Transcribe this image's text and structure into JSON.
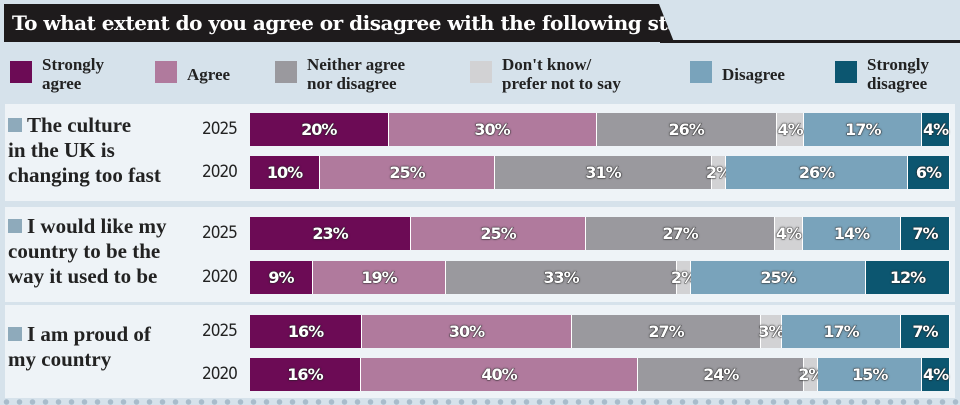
{
  "chart_data": {
    "type": "bar",
    "orientation": "horizontal",
    "stacked": true,
    "title": "To what extent do you agree or disagree with the following statements?",
    "legend_position": "top",
    "series": [
      {
        "name": "Strongly agree",
        "color": "#6c0b55"
      },
      {
        "name": "Agree",
        "color": "#b07a9d"
      },
      {
        "name": "Neither agree nor disagree",
        "color": "#9a999e"
      },
      {
        "name": "Don't know/ prefer not to say",
        "color": "#d2d2d4"
      },
      {
        "name": "Disagree",
        "color": "#79a3bb"
      },
      {
        "name": "Strongly disagree",
        "color": "#0c5670"
      }
    ],
    "groups": [
      {
        "statement": "The culture\nin the UK is\nchanging too fast",
        "rows": [
          {
            "year": "2025",
            "values": [
              20,
              30,
              26,
              4,
              17,
              4
            ]
          },
          {
            "year": "2020",
            "values": [
              10,
              25,
              31,
              2,
              26,
              6
            ]
          }
        ]
      },
      {
        "statement": "I would like my\ncountry to be the\nway it used to be",
        "rows": [
          {
            "year": "2025",
            "values": [
              23,
              25,
              27,
              4,
              14,
              7
            ]
          },
          {
            "year": "2020",
            "values": [
              9,
              19,
              33,
              2,
              25,
              12
            ]
          }
        ]
      },
      {
        "statement": "I am proud of\nmy country",
        "rows": [
          {
            "year": "2025",
            "values": [
              16,
              30,
              27,
              3,
              17,
              7
            ]
          },
          {
            "year": "2020",
            "values": [
              16,
              40,
              24,
              2,
              15,
              4
            ]
          }
        ]
      }
    ],
    "legend_labels": [
      "Strongly\nagree",
      "Agree",
      "Neither agree\nnor disagree",
      "Don't know/\nprefer not to say",
      "Disagree",
      "Strongly\ndisagree"
    ],
    "unit": "%"
  }
}
